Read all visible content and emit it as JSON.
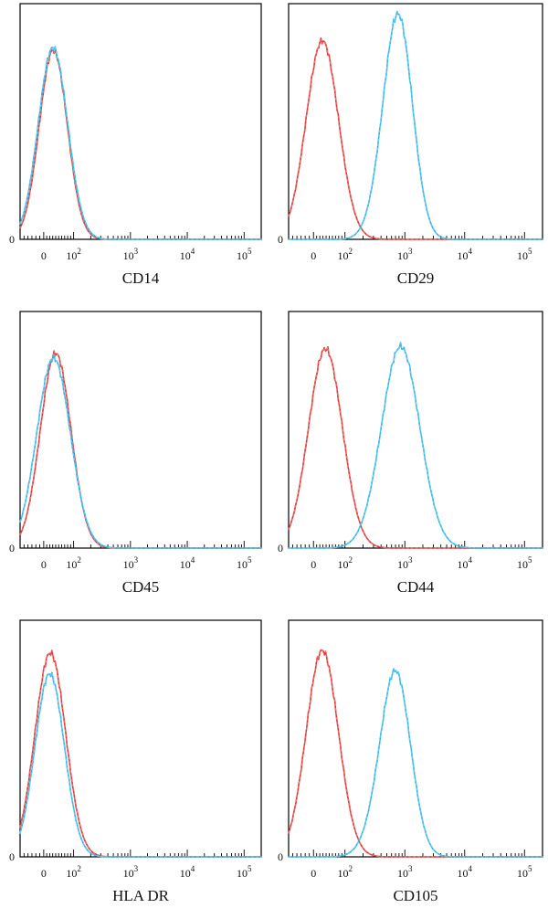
{
  "colors": {
    "control": "#e0312f",
    "marker": "#2bb4e8"
  },
  "chart_data": [
    {
      "type": "line",
      "xlabel": "CD14",
      "xscale": "biexponential",
      "xlim": [
        -60,
        200000
      ],
      "xticks": [
        {
          "value": 0,
          "label": "0"
        },
        {
          "value": 100,
          "label": "10",
          "exp": "2"
        },
        {
          "value": 1000,
          "label": "10",
          "exp": "3"
        },
        {
          "value": 10000,
          "label": "10",
          "exp": "4"
        },
        {
          "value": 100000,
          "label": "10",
          "exp": "5"
        }
      ],
      "ytick": "0",
      "grid": false,
      "series": [
        {
          "role": "control",
          "peaks": [
            {
              "center": 32,
              "height": 0.82,
              "width": 0.1
            }
          ]
        },
        {
          "role": "marker",
          "peaks": [
            {
              "center": 31,
              "height": 0.83,
              "width": 0.105
            }
          ]
        }
      ]
    },
    {
      "type": "line",
      "xlabel": "CD29",
      "xscale": "biexponential",
      "xlim": [
        -60,
        200000
      ],
      "xticks": [
        {
          "value": 0,
          "label": "0"
        },
        {
          "value": 100,
          "label": "10",
          "exp": "2"
        },
        {
          "value": 1000,
          "label": "10",
          "exp": "3"
        },
        {
          "value": 10000,
          "label": "10",
          "exp": "4"
        },
        {
          "value": 100000,
          "label": "10",
          "exp": "5"
        }
      ],
      "ytick": "0",
      "grid": false,
      "series": [
        {
          "role": "control",
          "peaks": [
            {
              "center": 28,
              "height": 0.86,
              "width": 0.11
            }
          ]
        },
        {
          "role": "marker",
          "peaks": [
            {
              "center": 800,
              "height": 0.92,
              "width": 0.095
            },
            {
              "center": 420,
              "height": 0.12,
              "width": 0.09
            }
          ]
        }
      ]
    },
    {
      "type": "line",
      "xlabel": "CD45",
      "xscale": "biexponential",
      "xlim": [
        -60,
        200000
      ],
      "xticks": [
        {
          "value": 0,
          "label": "0"
        },
        {
          "value": 100,
          "label": "10",
          "exp": "2"
        },
        {
          "value": 1000,
          "label": "10",
          "exp": "3"
        },
        {
          "value": 10000,
          "label": "10",
          "exp": "4"
        },
        {
          "value": 100000,
          "label": "10",
          "exp": "5"
        }
      ],
      "ytick": "0",
      "grid": false,
      "series": [
        {
          "role": "control",
          "peaks": [
            {
              "center": 40,
              "height": 0.84,
              "width": 0.11
            }
          ]
        },
        {
          "role": "marker",
          "peaks": [
            {
              "center": 33,
              "height": 0.82,
              "width": 0.12
            }
          ]
        }
      ]
    },
    {
      "type": "line",
      "xlabel": "CD44",
      "xscale": "biexponential",
      "xlim": [
        -60,
        200000
      ],
      "xticks": [
        {
          "value": 0,
          "label": "0"
        },
        {
          "value": 100,
          "label": "10",
          "exp": "2"
        },
        {
          "value": 1000,
          "label": "10",
          "exp": "3"
        },
        {
          "value": 10000,
          "label": "10",
          "exp": "4"
        },
        {
          "value": 100000,
          "label": "10",
          "exp": "5"
        }
      ],
      "ytick": "0",
      "grid": false,
      "series": [
        {
          "role": "control",
          "peaks": [
            {
              "center": 38,
              "height": 0.86,
              "width": 0.115
            }
          ]
        },
        {
          "role": "marker",
          "peaks": [
            {
              "center": 850,
              "height": 0.87,
              "width": 0.13
            }
          ]
        }
      ]
    },
    {
      "type": "line",
      "xlabel": "HLA DR",
      "xscale": "biexponential",
      "xlim": [
        -60,
        200000
      ],
      "xticks": [
        {
          "value": 0,
          "label": "0"
        },
        {
          "value": 100,
          "label": "10",
          "exp": "2"
        },
        {
          "value": 1000,
          "label": "10",
          "exp": "3"
        },
        {
          "value": 10000,
          "label": "10",
          "exp": "4"
        },
        {
          "value": 100000,
          "label": "10",
          "exp": "5"
        }
      ],
      "ytick": "0",
      "grid": false,
      "series": [
        {
          "role": "control",
          "peaks": [
            {
              "center": 22,
              "height": 0.88,
              "width": 0.11
            }
          ]
        },
        {
          "role": "marker",
          "peaks": [
            {
              "center": 20,
              "height": 0.79,
              "width": 0.105
            }
          ]
        }
      ]
    },
    {
      "type": "line",
      "xlabel": "CD105",
      "xscale": "biexponential",
      "xlim": [
        -60,
        200000
      ],
      "xticks": [
        {
          "value": 0,
          "label": "0"
        },
        {
          "value": 100,
          "label": "10",
          "exp": "2"
        },
        {
          "value": 1000,
          "label": "10",
          "exp": "3"
        },
        {
          "value": 10000,
          "label": "10",
          "exp": "4"
        },
        {
          "value": 100000,
          "label": "10",
          "exp": "5"
        }
      ],
      "ytick": "0",
      "grid": false,
      "series": [
        {
          "role": "control",
          "peaks": [
            {
              "center": 28,
              "height": 0.89,
              "width": 0.11
            }
          ]
        },
        {
          "role": "marker",
          "peaks": [
            {
              "center": 720,
              "height": 0.76,
              "width": 0.1
            },
            {
              "center": 360,
              "height": 0.09,
              "width": 0.1
            }
          ]
        }
      ]
    }
  ]
}
